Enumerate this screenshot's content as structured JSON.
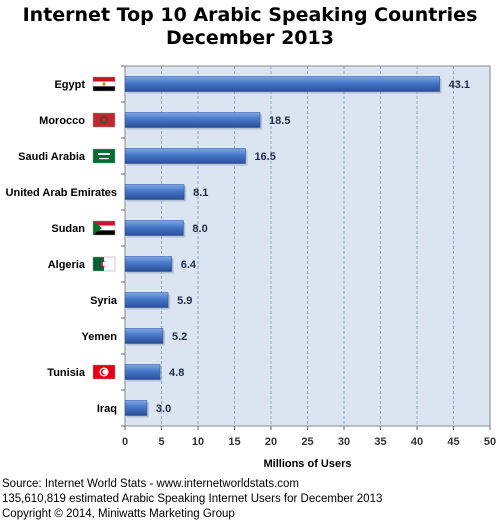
{
  "chart_data": {
    "type": "bar",
    "orientation": "horizontal",
    "title": "Internet Top 10 Arabic Speaking Countries",
    "subtitle": "December 2013",
    "xlabel": "Millions of Users",
    "ylabel": "",
    "xlim": [
      0,
      50
    ],
    "xticks": [
      0,
      5,
      10,
      15,
      20,
      25,
      30,
      35,
      40,
      45,
      50
    ],
    "grid": true,
    "categories": [
      "Egypt",
      "Morocco",
      "Saudi Arabia",
      "United Arab Emirates",
      "Sudan",
      "Algeria",
      "Syria",
      "Yemen",
      "Tunisia",
      "Iraq"
    ],
    "values": [
      43.1,
      18.5,
      16.5,
      8.1,
      8.0,
      6.4,
      5.9,
      5.2,
      4.8,
      3.0
    ],
    "value_labels": [
      "43.1",
      "18.5",
      "16.5",
      "8.1",
      "8.0",
      "6.4",
      "5.9",
      "5.2",
      "4.8",
      "3.0"
    ],
    "flags": [
      "egypt-flag",
      "morocco-flag",
      "saudi-arabia-flag",
      null,
      "sudan-flag",
      "algeria-flag",
      null,
      null,
      "tunisia-flag",
      null
    ],
    "colors": {
      "bar": "#3f6fc0",
      "bar_light": "#6f9be0",
      "bar_dark": "#2a4f99",
      "plot_bg": "#dbe5f1",
      "grid": "#8fa9cf"
    }
  },
  "footer": {
    "line1": "Source: Internet World Stats -  www.internetworldstats.com",
    "line2": "135,610,819 estimated Arabic Speaking Internet Users for December 2013",
    "line3": "Copyright © 2014, Miniwatts Marketing Group"
  }
}
